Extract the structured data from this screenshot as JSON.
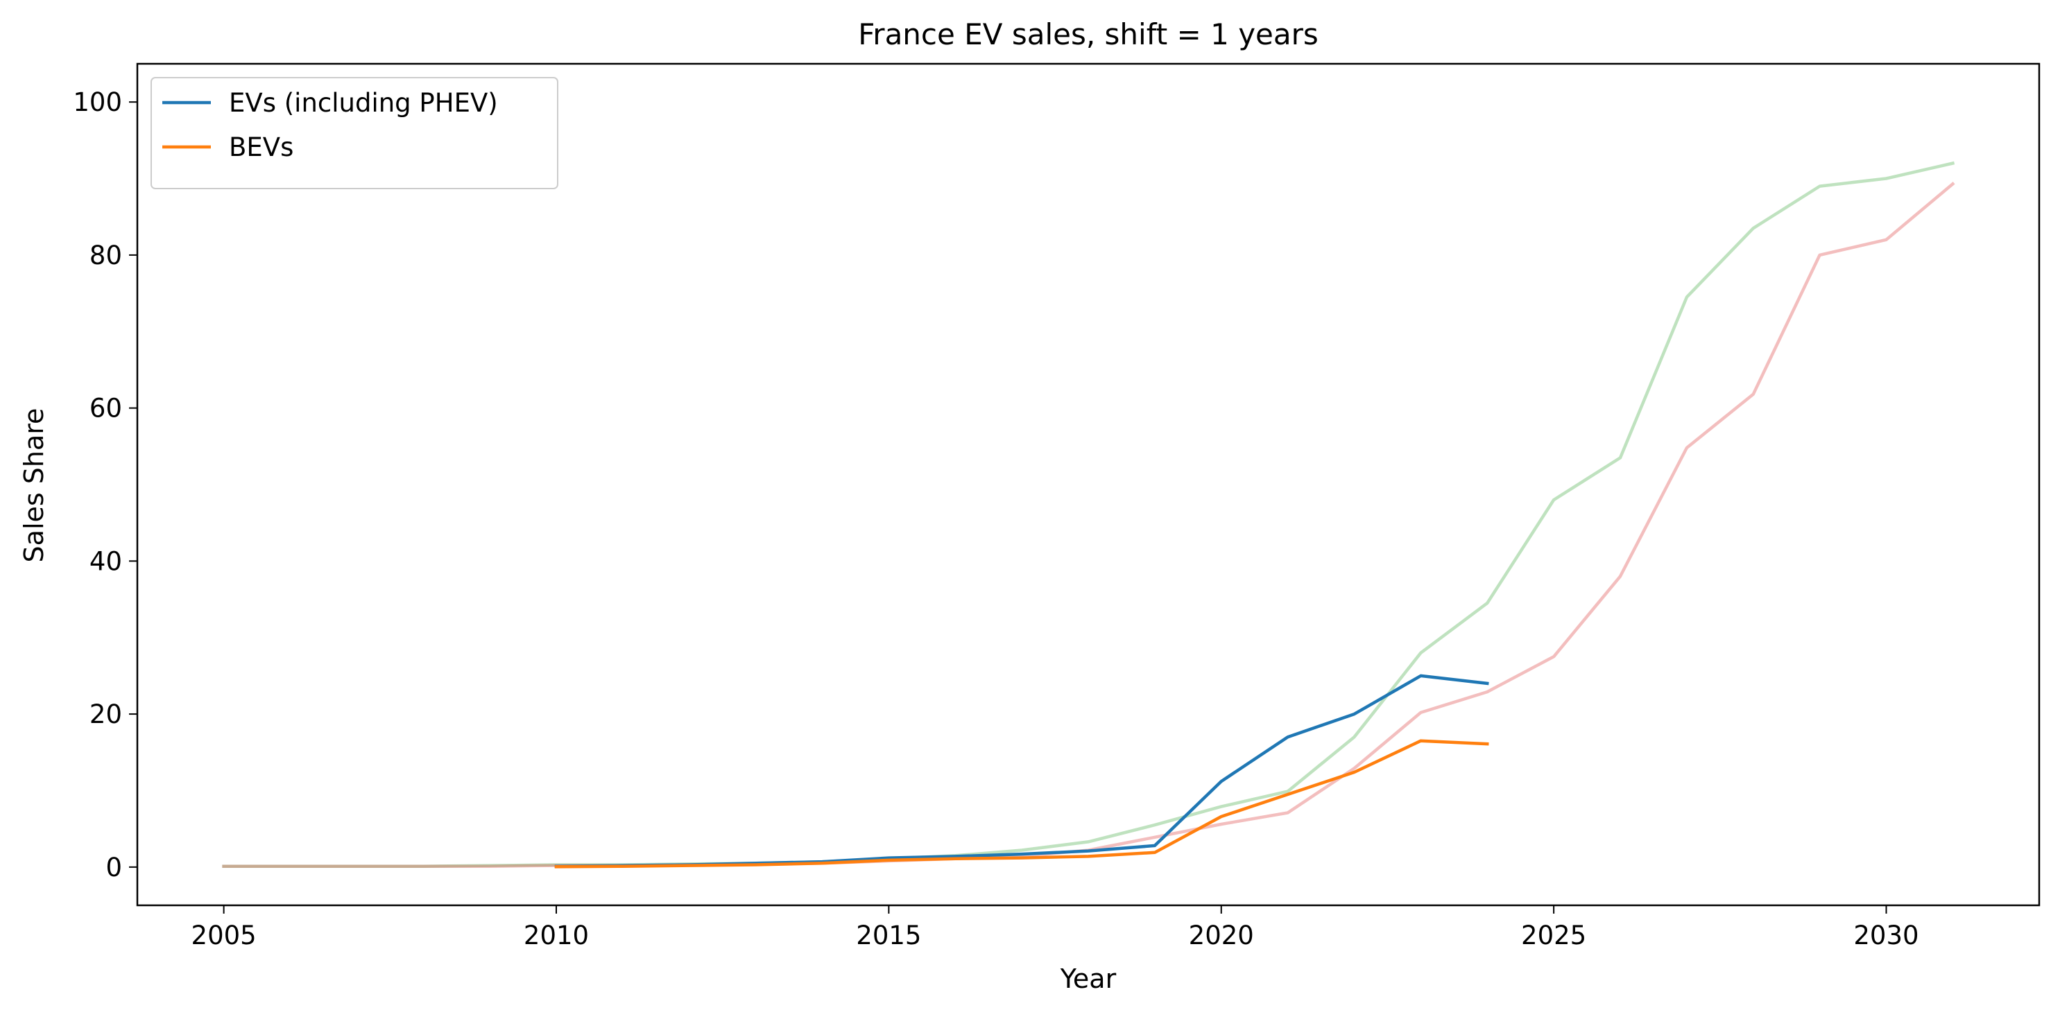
{
  "chart_data": {
    "type": "line",
    "title": "France EV sales, shift = 1 years",
    "xlabel": "Year",
    "ylabel": "Sales Share",
    "xlim": [
      2003.7,
      2032.3
    ],
    "ylim": [
      -5,
      105
    ],
    "xticks": [
      2005,
      2010,
      2015,
      2020,
      2025,
      2030
    ],
    "yticks": [
      0,
      20,
      40,
      60,
      80,
      100
    ],
    "grid": false,
    "legend_position": "top-left",
    "series": [
      {
        "name": "EVs (including PHEV)",
        "color": "#1f77b4",
        "in_legend": true,
        "x": [
          2010,
          2011,
          2012,
          2013,
          2014,
          2015,
          2016,
          2017,
          2018,
          2019,
          2020,
          2021,
          2022,
          2023,
          2024
        ],
        "y": [
          0.1,
          0.2,
          0.3,
          0.5,
          0.7,
          1.2,
          1.4,
          1.7,
          2.1,
          2.8,
          11.2,
          17.0,
          20.0,
          25.0,
          24.0
        ]
      },
      {
        "name": "BEVs",
        "color": "#ff7f0e",
        "in_legend": true,
        "x": [
          2010,
          2011,
          2012,
          2013,
          2014,
          2015,
          2016,
          2017,
          2018,
          2019,
          2020,
          2021,
          2022,
          2023,
          2024
        ],
        "y": [
          0.05,
          0.1,
          0.2,
          0.3,
          0.5,
          0.9,
          1.1,
          1.2,
          1.4,
          1.9,
          6.6,
          9.5,
          12.4,
          16.5,
          16.1
        ]
      },
      {
        "name": "",
        "color": "#2ca02c",
        "opacity": 0.3,
        "in_legend": false,
        "x": [
          2005,
          2006,
          2007,
          2008,
          2009,
          2010,
          2011,
          2012,
          2013,
          2014,
          2015,
          2016,
          2017,
          2018,
          2019,
          2020,
          2021,
          2022,
          2023,
          2024,
          2025,
          2026,
          2027,
          2028,
          2029,
          2030,
          2031
        ],
        "y": [
          0.1,
          0.1,
          0.1,
          0.1,
          0.2,
          0.3,
          0.3,
          0.4,
          0.5,
          0.7,
          1.1,
          1.5,
          2.2,
          3.3,
          5.5,
          7.9,
          9.9,
          17.0,
          28.0,
          34.5,
          48.0,
          53.5,
          74.5,
          83.5,
          89.0,
          90.0,
          92.0
        ]
      },
      {
        "name": "",
        "color": "#d62728",
        "opacity": 0.3,
        "in_legend": false,
        "x": [
          2005,
          2006,
          2007,
          2008,
          2009,
          2010,
          2011,
          2012,
          2013,
          2014,
          2015,
          2016,
          2017,
          2018,
          2019,
          2020,
          2021,
          2022,
          2023,
          2024,
          2025,
          2026,
          2027,
          2028,
          2029,
          2030,
          2031
        ],
        "y": [
          0.1,
          0.1,
          0.1,
          0.1,
          0.1,
          0.2,
          0.2,
          0.3,
          0.4,
          0.5,
          0.8,
          1.1,
          1.4,
          2.2,
          3.9,
          5.6,
          7.1,
          12.9,
          20.2,
          22.9,
          27.5,
          38.0,
          54.8,
          61.8,
          80.0,
          82.0,
          89.3
        ]
      }
    ]
  }
}
